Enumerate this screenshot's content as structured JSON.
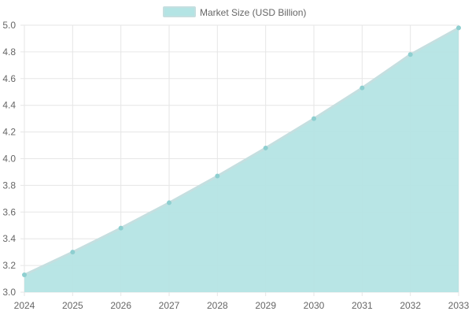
{
  "chart_data": {
    "type": "area",
    "series": [
      {
        "name": "Market Size (USD Billion)",
        "x": [
          "2024",
          "2025",
          "2026",
          "2027",
          "2028",
          "2029",
          "2030",
          "2031",
          "2032",
          "2033"
        ],
        "values": [
          3.13,
          3.3,
          3.48,
          3.67,
          3.87,
          4.08,
          4.3,
          4.53,
          4.78,
          4.98
        ]
      }
    ],
    "xticks": [
      "2024",
      "2025",
      "2026",
      "2027",
      "2028",
      "2029",
      "2030",
      "2031",
      "2032",
      "2033"
    ],
    "yticks": [
      "3.0",
      "3.2",
      "3.4",
      "3.6",
      "3.8",
      "4.0",
      "4.2",
      "4.4",
      "4.6",
      "4.8",
      "5.0"
    ],
    "ylim": [
      3.0,
      5.0
    ],
    "grid": true,
    "legend_position": "top-center",
    "colors": {
      "fill": "#b4e4e4",
      "line": "#c5dfe0",
      "point": "#8ecfd0",
      "grid": "#e6e6e6",
      "tick_text": "#666666"
    }
  }
}
